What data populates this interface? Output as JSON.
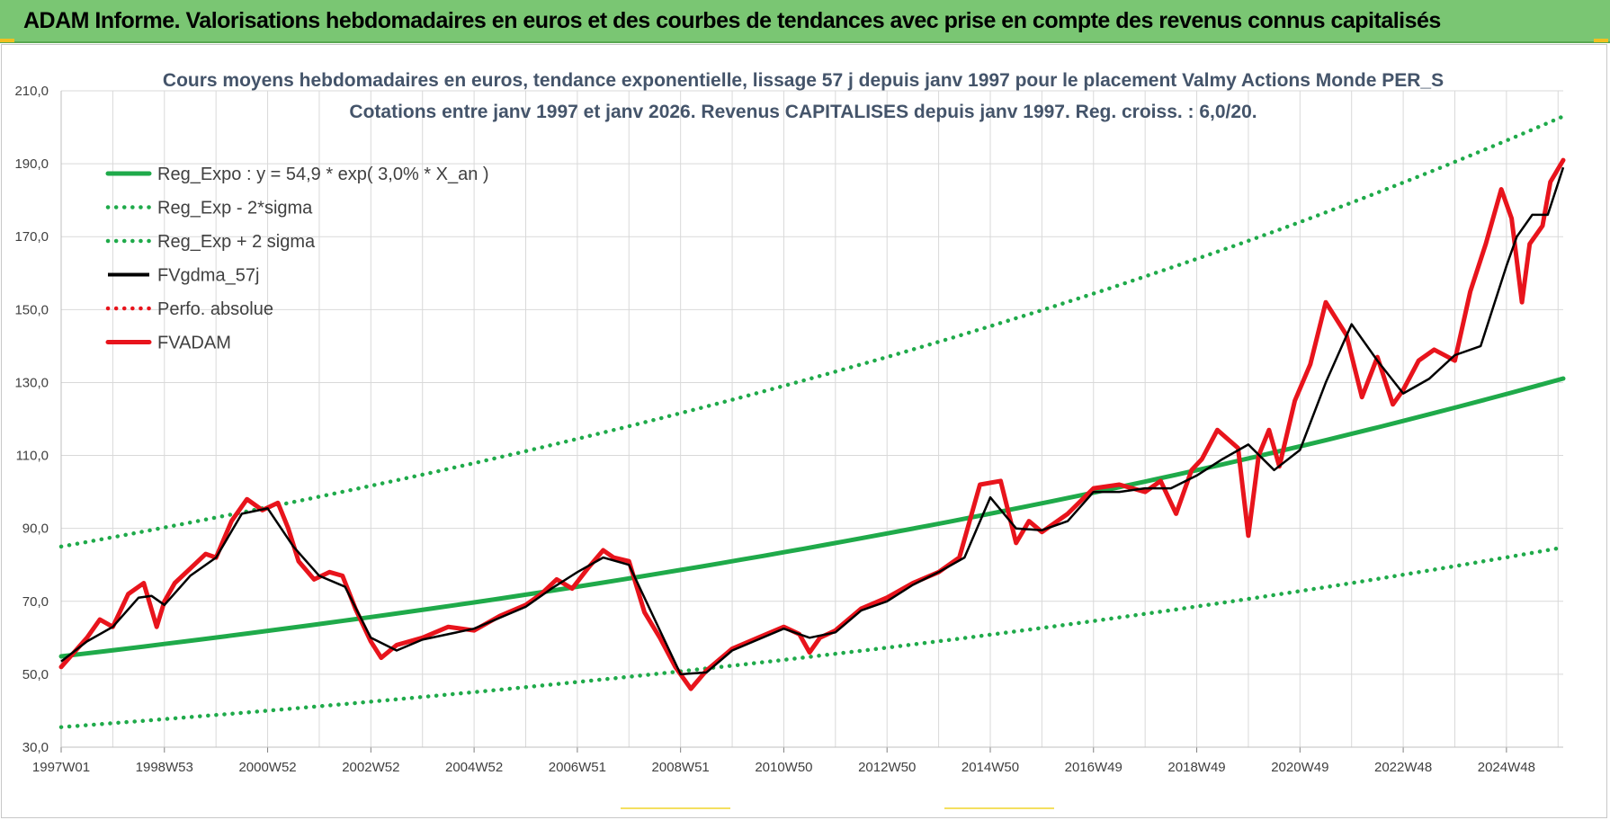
{
  "banner": {
    "title": "ADAM Informe. Valorisations hebdomadaires en euros et des courbes de tendances avec prise en compte des revenus connus capitalisés"
  },
  "colors": {
    "banner": "#7ac673",
    "regression": "#1faa4a",
    "smoothed": "#000000",
    "price": "#e8141c",
    "title": "#44546a",
    "grid": "#d9d9d9"
  },
  "chart_data": {
    "type": "line",
    "title": "Cours moyens hebdomadaires en euros, tendance exponentielle, lissage 57 j depuis janv 1997 pour le placement Valmy Actions Monde PER_S",
    "subtitle": "Cotations entre janv 1997 et janv 2026. Revenus CAPITALISES depuis janv 1997. Reg. croiss. : 6,0/20.",
    "xlabel": "",
    "ylabel": "",
    "ylim": [
      30,
      210
    ],
    "yticks": [
      "30,0",
      "50,0",
      "70,0",
      "90,0",
      "110,0",
      "130,0",
      "150,0",
      "170,0",
      "190,0",
      "210,0"
    ],
    "x_range": [
      1997.0,
      2026.1
    ],
    "xticks": [
      {
        "label": "1997W01",
        "x": 1997.0
      },
      {
        "label": "1998W53",
        "x": 1999.0
      },
      {
        "label": "2000W52",
        "x": 2001.0
      },
      {
        "label": "2002W52",
        "x": 2003.0
      },
      {
        "label": "2004W52",
        "x": 2005.0
      },
      {
        "label": "2006W51",
        "x": 2007.0
      },
      {
        "label": "2008W51",
        "x": 2009.0
      },
      {
        "label": "2010W50",
        "x": 2011.0
      },
      {
        "label": "2012W50",
        "x": 2013.0
      },
      {
        "label": "2014W50",
        "x": 2015.0
      },
      {
        "label": "2016W49",
        "x": 2017.0
      },
      {
        "label": "2018W49",
        "x": 2019.0
      },
      {
        "label": "2020W49",
        "x": 2021.0
      },
      {
        "label": "2022W48",
        "x": 2023.0
      },
      {
        "label": "2024W48",
        "x": 2025.0
      }
    ],
    "grid": true,
    "legend_position": "top-left",
    "series": [
      {
        "name": "Reg_Expo : y = 54,9 * exp( 3,0% *  X_an )",
        "style": "solid-thick",
        "color": "#1faa4a",
        "x": [
          1997.0,
          2001.0,
          2005.0,
          2009.0,
          2013.0,
          2017.0,
          2021.0,
          2026.1
        ],
        "y": [
          54.9,
          61.9,
          69.7,
          78.6,
          88.6,
          99.8,
          112.5,
          131.1
        ]
      },
      {
        "name": "Reg_Exp - 2*sigma",
        "style": "dotted",
        "color": "#1faa4a",
        "x": [
          1997.0,
          2001.0,
          2005.0,
          2009.0,
          2013.0,
          2017.0,
          2021.0,
          2026.1
        ],
        "y": [
          35.5,
          40.0,
          45.1,
          50.8,
          57.3,
          64.6,
          72.8,
          84.8
        ]
      },
      {
        "name": "Reg_Exp + 2 sigma",
        "style": "dotted",
        "color": "#1faa4a",
        "x": [
          1997.0,
          2001.0,
          2005.0,
          2009.0,
          2013.0,
          2017.0,
          2021.0,
          2026.1
        ],
        "y": [
          85.0,
          95.8,
          107.9,
          121.6,
          137.0,
          154.4,
          174.0,
          203.0
        ]
      },
      {
        "name": "FVgdma_57j",
        "style": "solid",
        "color": "#000000",
        "x": [
          1997.0,
          1997.5,
          1998.0,
          1998.5,
          1998.75,
          1999.0,
          1999.5,
          2000.0,
          2000.5,
          2001.0,
          2001.5,
          2002.0,
          2002.5,
          2003.0,
          2003.5,
          2004.0,
          2005.0,
          2006.0,
          2006.5,
          2007.0,
          2007.5,
          2008.0,
          2008.5,
          2009.0,
          2009.5,
          2010.0,
          2010.5,
          2011.0,
          2011.5,
          2012.0,
          2012.5,
          2013.0,
          2013.5,
          2014.0,
          2014.5,
          2015.0,
          2015.5,
          2016.0,
          2016.5,
          2017.0,
          2017.5,
          2018.0,
          2018.5,
          2019.0,
          2019.5,
          2020.0,
          2020.5,
          2021.0,
          2021.5,
          2022.0,
          2022.5,
          2023.0,
          2023.5,
          2024.0,
          2024.5,
          2025.0,
          2025.2,
          2025.5,
          2025.8,
          2026.1
        ],
        "y": [
          53.5,
          59.0,
          63.0,
          71.0,
          71.5,
          69.0,
          77.0,
          82.0,
          94.0,
          95.5,
          85.0,
          77.0,
          74.0,
          60.0,
          56.5,
          59.5,
          62.5,
          68.5,
          73.5,
          78.0,
          82.0,
          80.0,
          65.0,
          50.0,
          50.5,
          56.5,
          59.5,
          62.5,
          60.0,
          61.5,
          67.5,
          70.0,
          74.5,
          78.0,
          82.0,
          98.5,
          90.0,
          89.5,
          92.0,
          100.0,
          100.0,
          101.0,
          101.0,
          104.5,
          109.0,
          113.0,
          106.0,
          111.5,
          130.0,
          146.0,
          136.0,
          127.0,
          131.0,
          137.5,
          140.0,
          162.0,
          170.0,
          176.0,
          176.0,
          189.0
        ]
      },
      {
        "name": "Perfo. absolue",
        "style": "dotted",
        "color": "#e8141c",
        "x": [],
        "y": []
      },
      {
        "name": "FVADAM",
        "style": "solid-thick",
        "color": "#e8141c",
        "x": [
          1997.0,
          1997.25,
          1997.5,
          1997.75,
          1998.0,
          1998.3,
          1998.6,
          1998.85,
          1999.0,
          1999.2,
          1999.5,
          1999.8,
          2000.0,
          2000.3,
          2000.6,
          2000.9,
          2001.2,
          2001.4,
          2001.6,
          2001.9,
          2002.2,
          2002.45,
          2002.7,
          2003.0,
          2003.2,
          2003.5,
          2004.0,
          2004.5,
          2005.0,
          2005.5,
          2006.0,
          2006.3,
          2006.6,
          2006.9,
          2007.2,
          2007.5,
          2007.7,
          2008.0,
          2008.3,
          2008.6,
          2008.9,
          2009.2,
          2009.5,
          2010.0,
          2010.5,
          2011.0,
          2011.3,
          2011.5,
          2011.7,
          2012.0,
          2012.5,
          2013.0,
          2013.5,
          2014.0,
          2014.4,
          2014.8,
          2015.2,
          2015.5,
          2015.75,
          2016.0,
          2016.5,
          2017.0,
          2017.5,
          2018.0,
          2018.3,
          2018.6,
          2018.9,
          2019.1,
          2019.4,
          2019.8,
          2020.0,
          2020.2,
          2020.4,
          2020.6,
          2020.9,
          2021.2,
          2021.5,
          2021.9,
          2022.2,
          2022.5,
          2022.8,
          2023.0,
          2023.3,
          2023.6,
          2024.0,
          2024.3,
          2024.6,
          2024.9,
          2025.1,
          2025.3,
          2025.45,
          2025.7,
          2025.85,
          2026.1
        ],
        "y": [
          52.0,
          56.0,
          60.0,
          65.0,
          63.0,
          72.0,
          75.0,
          63.0,
          70.0,
          75.0,
          79.0,
          83.0,
          82.0,
          92.0,
          98.0,
          95.0,
          97.0,
          90.0,
          81.0,
          76.0,
          78.0,
          77.0,
          68.0,
          59.0,
          54.5,
          58.0,
          60.0,
          63.0,
          62.0,
          66.0,
          69.0,
          72.0,
          76.0,
          73.5,
          79.0,
          84.0,
          82.0,
          81.0,
          67.0,
          60.0,
          52.0,
          46.0,
          51.0,
          57.0,
          60.0,
          63.0,
          61.0,
          56.0,
          60.0,
          62.0,
          68.0,
          71.0,
          75.0,
          78.0,
          82.0,
          102.0,
          103.0,
          86.0,
          92.0,
          89.0,
          94.0,
          101.0,
          102.0,
          100.0,
          103.0,
          94.0,
          106.0,
          109.0,
          117.0,
          112.0,
          88.0,
          110.0,
          117.0,
          107.0,
          125.0,
          135.0,
          152.0,
          143.0,
          126.0,
          137.0,
          124.0,
          128.0,
          136.0,
          139.0,
          136.0,
          155.0,
          168.0,
          183.0,
          175.0,
          152.0,
          168.0,
          173.0,
          185.0,
          191.0
        ]
      }
    ]
  }
}
